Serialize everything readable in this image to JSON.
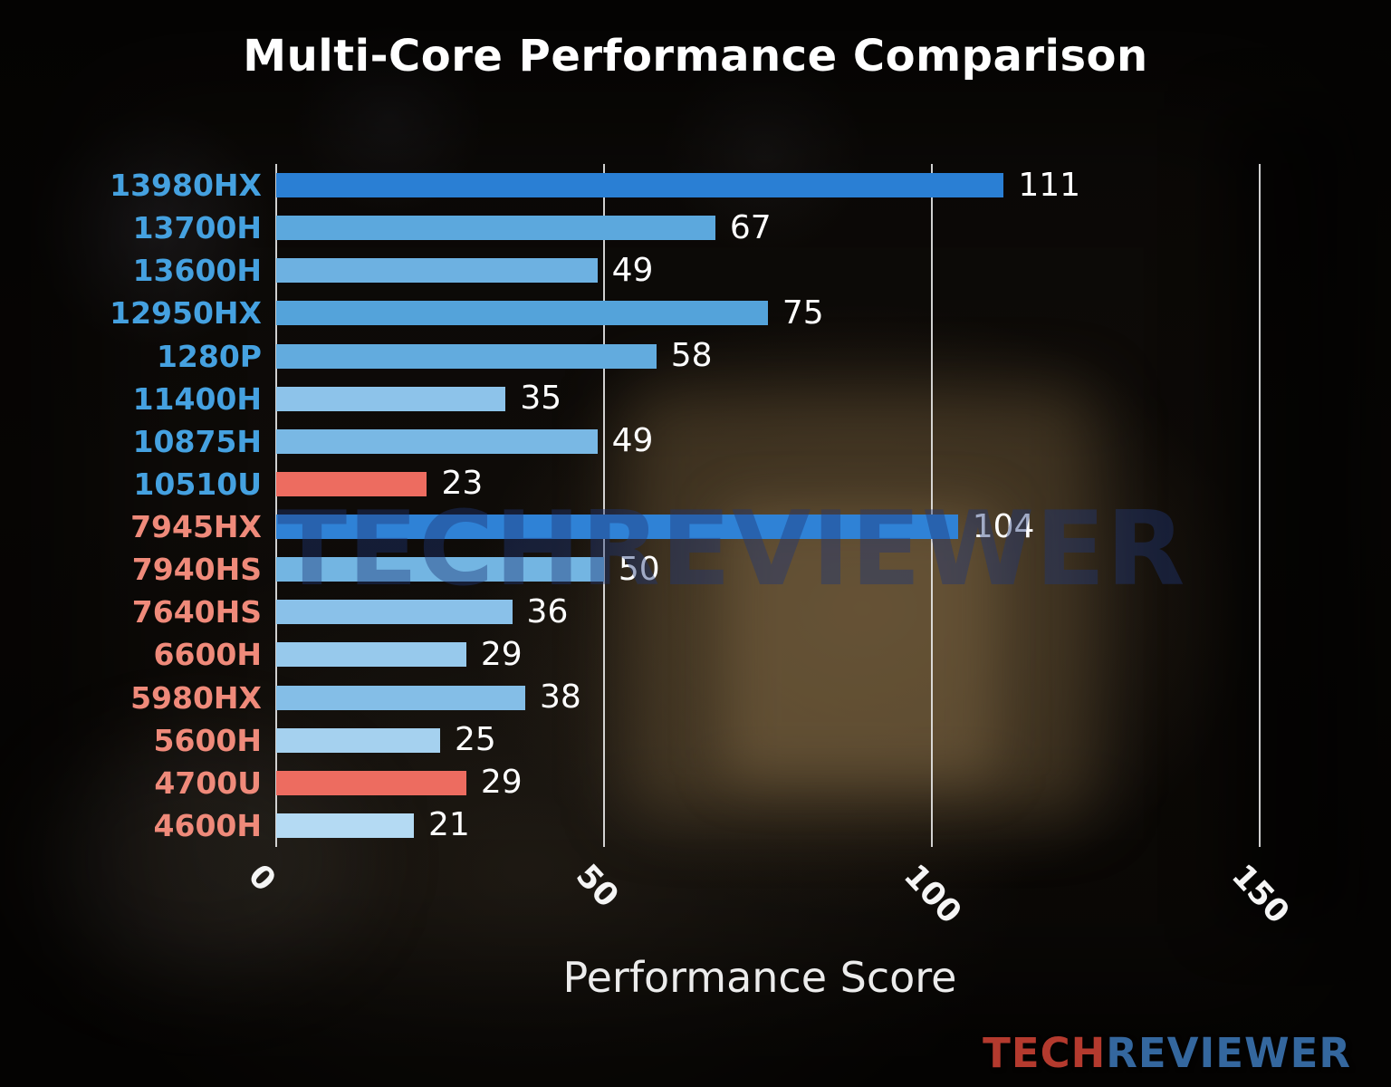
{
  "title": "Multi-Core Performance Comparison",
  "x_axis_label": "Performance Score",
  "watermark": "TECHREVIEWER",
  "brand": {
    "tech": "TECH",
    "reviewer": "REVIEWER",
    "tech_color": "#b43a2e",
    "reviewer_color": "#34679e"
  },
  "colors": {
    "highlight_bar_blue": "#2a7fd4",
    "accent_bar_red": "#ed6c60",
    "intel_label_blue": "#45a1e0",
    "amd_label_salmon": "#ef8a7a",
    "gridline": "#ececec",
    "value_text": "#ffffff"
  },
  "chart_data": {
    "type": "bar",
    "orientation": "horizontal",
    "title": "Multi-Core Performance Comparison",
    "xlabel": "Performance Score",
    "categories": [
      "13980HX",
      "13700H",
      "13600H",
      "12950HX",
      "1280P",
      "11400H",
      "10875H",
      "10510U",
      "7945HX",
      "7940HS",
      "7640HS",
      "6600H",
      "5980HX",
      "5600H",
      "4700U",
      "4600H"
    ],
    "values": [
      111,
      67,
      49,
      75,
      58,
      35,
      49,
      23,
      104,
      50,
      36,
      29,
      38,
      25,
      29,
      21
    ],
    "bar_colors": [
      "#2a7fd4",
      "#5ca8dd",
      "#6db1e1",
      "#54a3da",
      "#62abde",
      "#8dc3ea",
      "#79b8e4",
      "#ed6c60",
      "#2f82d6",
      "#73b5e2",
      "#8ac1e9",
      "#97c9ec",
      "#84bee7",
      "#a5d1ef",
      "#ed6c60",
      "#b4daf3"
    ],
    "label_colors": [
      "#45a1e0",
      "#45a1e0",
      "#45a1e0",
      "#45a1e0",
      "#45a1e0",
      "#45a1e0",
      "#45a1e0",
      "#45a1e0",
      "#ef8a7a",
      "#ef8a7a",
      "#ef8a7a",
      "#ef8a7a",
      "#ef8a7a",
      "#ef8a7a",
      "#ef8a7a",
      "#ef8a7a"
    ],
    "xticks": [
      0,
      50,
      100,
      150
    ],
    "xlim": [
      0,
      160
    ],
    "grid": true,
    "legend": "none"
  }
}
